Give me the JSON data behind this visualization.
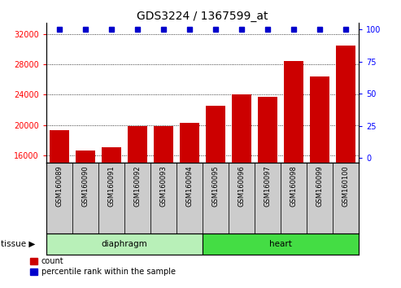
{
  "title": "GDS3224 / 1367599_at",
  "samples": [
    "GSM160089",
    "GSM160090",
    "GSM160091",
    "GSM160092",
    "GSM160093",
    "GSM160094",
    "GSM160095",
    "GSM160096",
    "GSM160097",
    "GSM160098",
    "GSM160099",
    "GSM160100"
  ],
  "counts": [
    19300,
    16600,
    17000,
    19800,
    19800,
    20300,
    22500,
    24000,
    23700,
    28500,
    26400,
    30500
  ],
  "percentile": [
    100,
    100,
    100,
    100,
    100,
    100,
    100,
    100,
    100,
    100,
    100,
    100
  ],
  "tissue_groups": [
    {
      "label": "diaphragm",
      "start": 0,
      "end": 5,
      "color": "#b8f0b8"
    },
    {
      "label": "heart",
      "start": 6,
      "end": 11,
      "color": "#44dd44"
    }
  ],
  "bar_color": "#cc0000",
  "dot_color": "#0000cc",
  "ylim_left": [
    15000,
    33500
  ],
  "yticks_left": [
    16000,
    20000,
    24000,
    28000,
    32000
  ],
  "ylim_right": [
    -3.75,
    105
  ],
  "yticks_right": [
    0,
    25,
    50,
    75,
    100
  ],
  "title_fontsize": 10,
  "tick_fontsize": 7,
  "label_fontsize": 7.5,
  "legend_count_label": "count",
  "legend_pct_label": "percentile rank within the sample",
  "bg_color": "#ffffff",
  "xlabel_area_color": "#cccccc",
  "grid_color": "#000000"
}
